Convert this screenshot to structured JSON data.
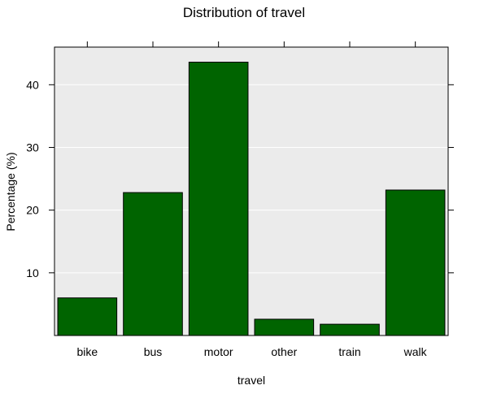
{
  "chart_data": {
    "type": "bar",
    "title": "Distribution of travel",
    "xlabel": "travel",
    "ylabel": "Percentage (%)",
    "categories": [
      "bike",
      "bus",
      "motor",
      "other",
      "train",
      "walk"
    ],
    "values": [
      6.0,
      22.8,
      43.6,
      2.6,
      1.8,
      23.2
    ],
    "ylim": [
      0,
      46
    ],
    "yticks": [
      10,
      20,
      30,
      40
    ],
    "grid": true,
    "legend": "none"
  },
  "colors": {
    "bar_fill": "#006400",
    "bar_stroke": "#000000",
    "panel_background": "#ebebeb",
    "grid": "#ffffff"
  }
}
